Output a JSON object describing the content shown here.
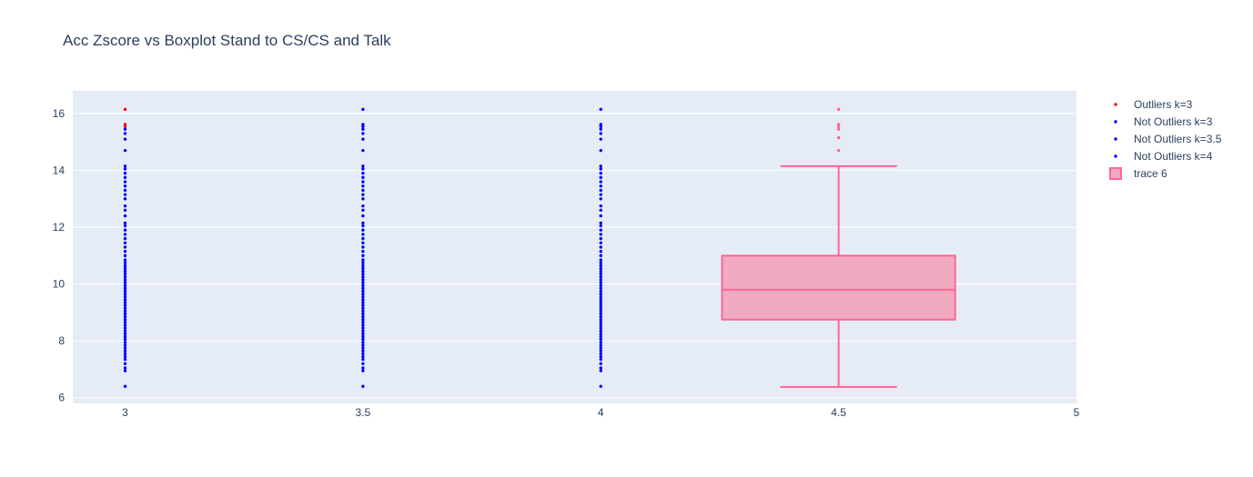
{
  "chart_data": {
    "type": "scatter",
    "title": "Acc Zscore vs Boxplot Stand to CS/CS and Talk",
    "xlabel": "",
    "ylabel": "",
    "xlim": [
      2.89,
      5
    ],
    "ylim": [
      5.8,
      16.8
    ],
    "x_ticks": [
      3,
      3.5,
      4,
      4.5,
      5
    ],
    "x_tick_labels": [
      "3",
      "3.5",
      "4",
      "4.5",
      "5"
    ],
    "y_ticks": [
      6,
      8,
      10,
      12,
      14,
      16
    ],
    "y_tick_labels": [
      "6",
      "8",
      "10",
      "12",
      "14",
      "16"
    ],
    "grid": true,
    "legend_position": "top-right",
    "colors": {
      "plot_bg": "#e5ecf6",
      "grid": "#ffffff",
      "outliers": "#ff0000",
      "not_outliers": "#0000ff",
      "box_line": "#ff6692",
      "box_fill": "#f2a9c2"
    },
    "series": [
      {
        "name": "Outliers k=3",
        "kind": "points",
        "x": 3,
        "color": "#ff0000",
        "y": [
          16.15,
          15.62,
          15.55
        ]
      },
      {
        "name": "Not Outliers k=3",
        "kind": "points",
        "x": 3,
        "color": "#0000ff",
        "y": [
          6.4,
          6.95,
          7.05,
          7.2,
          7.35,
          7.45,
          7.55,
          7.65,
          7.75,
          7.85,
          7.95,
          8.05,
          8.15,
          8.25,
          8.35,
          8.45,
          8.55,
          8.65,
          8.75,
          8.85,
          8.95,
          9.05,
          9.15,
          9.25,
          9.35,
          9.45,
          9.55,
          9.65,
          9.75,
          9.85,
          9.95,
          10.05,
          10.15,
          10.25,
          10.35,
          10.45,
          10.55,
          10.65,
          10.75,
          10.85,
          11.0,
          11.15,
          11.3,
          11.45,
          11.6,
          11.75,
          11.9,
          12.05,
          12.15,
          12.4,
          12.6,
          12.75,
          13.0,
          13.15,
          13.3,
          13.45,
          13.6,
          13.75,
          13.9,
          14.05,
          14.15,
          14.7,
          15.1,
          15.3,
          15.45
        ]
      },
      {
        "name": "Not Outliers k=3.5",
        "kind": "points",
        "x": 3.5,
        "color": "#0000ff",
        "y": [
          6.4,
          6.95,
          7.05,
          7.2,
          7.35,
          7.45,
          7.55,
          7.65,
          7.75,
          7.85,
          7.95,
          8.05,
          8.15,
          8.25,
          8.35,
          8.45,
          8.55,
          8.65,
          8.75,
          8.85,
          8.95,
          9.05,
          9.15,
          9.25,
          9.35,
          9.45,
          9.55,
          9.65,
          9.75,
          9.85,
          9.95,
          10.05,
          10.15,
          10.25,
          10.35,
          10.45,
          10.55,
          10.65,
          10.75,
          10.85,
          11.0,
          11.15,
          11.3,
          11.45,
          11.6,
          11.75,
          11.9,
          12.05,
          12.15,
          12.4,
          12.6,
          12.75,
          13.0,
          13.15,
          13.3,
          13.45,
          13.6,
          13.75,
          13.9,
          14.05,
          14.15,
          14.7,
          15.1,
          15.3,
          15.45,
          15.55,
          15.62,
          16.15
        ]
      },
      {
        "name": "Not Outliers k=4",
        "kind": "points",
        "x": 4,
        "color": "#0000ff",
        "y": [
          6.4,
          6.95,
          7.05,
          7.2,
          7.35,
          7.45,
          7.55,
          7.65,
          7.75,
          7.85,
          7.95,
          8.05,
          8.15,
          8.25,
          8.35,
          8.45,
          8.55,
          8.65,
          8.75,
          8.85,
          8.95,
          9.05,
          9.15,
          9.25,
          9.35,
          9.45,
          9.55,
          9.65,
          9.75,
          9.85,
          9.95,
          10.05,
          10.15,
          10.25,
          10.35,
          10.45,
          10.55,
          10.65,
          10.75,
          10.85,
          11.0,
          11.15,
          11.3,
          11.45,
          11.6,
          11.75,
          11.9,
          12.05,
          12.15,
          12.4,
          12.6,
          12.75,
          13.0,
          13.15,
          13.3,
          13.45,
          13.6,
          13.75,
          13.9,
          14.05,
          14.15,
          14.7,
          15.1,
          15.3,
          15.45,
          15.55,
          15.62,
          16.15
        ]
      },
      {
        "name": "trace 6",
        "kind": "box",
        "x": 4.5,
        "color": "#ff6692",
        "fill": "#f2a9c2",
        "box_width": 0.49,
        "whisker_width": 0.245,
        "lower_fence": 6.38,
        "q1": 8.75,
        "median": 9.8,
        "q3": 11.0,
        "upper_fence": 14.15,
        "outliers": [
          14.7,
          15.15,
          15.45,
          15.55,
          15.62,
          16.15
        ]
      }
    ]
  }
}
